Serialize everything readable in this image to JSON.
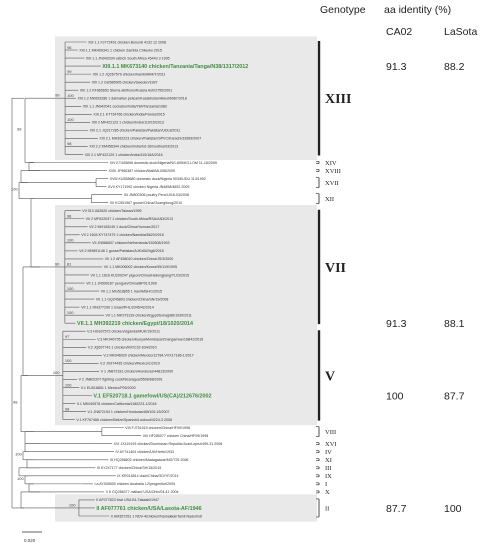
{
  "headers": {
    "genotype": "Genotype",
    "aa_identity": "aa identity (%)",
    "ref1": "CA02",
    "ref2": "LaSota"
  },
  "scale_bar": "0.020",
  "groups": [
    {
      "name": "XIII",
      "shaded": true,
      "big": true,
      "tips": [
        "XIII 1.1 FJ772491 chicken Burundi 4132 12 2008",
        "XIII 1.1 MK409341 1 chicken Zambia Chiwoko 2015",
        "XIII.1.1 JN942034 ostrich South Africa 45443 3 1995",
        "XIII.1.1 MK673140 chicken/Tanzania/Tanga/N38/1317/2012",
        "XIII 1.2 JQ267579 chicken/Iran/EMM4/T/2011",
        "XIII 1.2 GU585905 chicken/Sweden/1997",
        "XIII 1.2 KF865652 Sterna albifrons/Russia Astr/2755/2001",
        "XIII 1.2 MK693286 1 dalmatian pelican/Kazakhstan/Akkol/6987/2018",
        "XIII 1.1 JN942041 cockatoo/India/784/Tanzania/1982",
        "XIII.2.1 KT734766 chicken/India/Pandu/2015",
        "XIII 2 MF422123 1 chicken/India/110/15/2013",
        "XIII 2.1 JQ217285 chicken/Pakistan/Pakistan/UDL8/2011",
        "XIII 2.1 MH392223 chicken/Pakistan/SPVC/Karachi/33569/2007",
        "XIII 2.2 KM456344 chicken/India/hd-16/Godhra/03/2013",
        "XIII 2.1 MF422129 1 chicken/India/410/16A/2016"
      ]
    },
    {
      "name": "XIV",
      "tips": [
        "XIV KT445896 domestic duck/Nigeria/NG-695/KG.LOM 11-16/2009"
      ]
    },
    {
      "name": "XVIII",
      "tips": [
        "XVIII JF966387 chicken/Mali/ML008/2009"
      ]
    },
    {
      "name": "XVII",
      "tips": [
        "XVIII KU558680 domestic duck/Nigeria 903/KUDU 113/1992",
        "XVII KY171992 chicken Nigeria JN4858/4892 2009"
      ]
    },
    {
      "name": "XII",
      "tips": [
        "XII JN800306 poultry Peru/1918-03/2008",
        "XII KC551967 goose/China/Guangdong/2010"
      ]
    },
    {
      "name": "VII",
      "shaded": true,
      "big": true,
      "tips": [
        "VII 913 U62620 chicken/Taiwan/1995",
        "VII 2 MF622047 1 chicken/South Africa/RSA/AN3/2013",
        "VII 2 MH105249 1 duck/China/Yunnan/2017",
        "VII 2 1604 KY747479 1 chicken/Namibia/5620/2016",
        "VII JN986837 chicken/Netherlands/152608/1993",
        "VII 2 MH891146 1 goose/Pakistan/AJK/AW/4g6/2018",
        "VII 1.2 AF458010 chicken/China/JS/3/2000",
        "VII 1.1 MK006002 chicken/Korea/95/119/1995",
        "VII 1.1 1616 KU200247 pigeon/China/Heilongjiang/TL03/2015",
        "VII 1.1 JN599167 penguin/China/BP01/1999",
        "VII 1.1 MG518855 1 Iran/IMSH/1/2015",
        "VII 1.1 GQ245803 chicken/China/SN/19/2008",
        "VII 1.1 MH377290 1 Israel/PHL/2045/42/2014",
        "VII 1.1 MK973139 chicken/Egypt/Sohag/86/1030/2011",
        "VII.1.1 MH392219 chicken/Egypt/18/1020/2014"
      ]
    },
    {
      "name": "V",
      "shaded": true,
      "big": true,
      "tips": [
        "V.3 HG937572 chicken/Uganda/MUK/19/2011",
        "V.3 MK940795 chicken/Kenya/Mombasa/Changamwe/16B42/2016",
        "V.2 JQ697743 1 chicken/MX/C32-634/2010",
        "V.2 MK046920 chicken/Mexico/12784,VVX17186-1/2017",
        "V.2 JX974435 chicken/Mexico/1/2010",
        "V 1 JN872181 chicken/Honduras/44813/2000",
        "V 2 JN802207 fighting cock/Nicaragua/5506/68/2001",
        "V.1 EU518851 1 Mexico/P05/2000",
        "V.1 EF520718.1 gamefowl/US(CA)/212676/2002",
        "V.1 MK040578 chicken/California/1180223-1/2018",
        "V.1 JN872194 1 chicken/Honduras/AW109-15/2007",
        "V.1 KF767466 chicken/Belize/Spanish/Lookout/4224-3 2008"
      ]
    },
    {
      "name": "VIII",
      "tips": [
        "VIII FJ751919 chicken/China/HF09/1998",
        "VIII HF285077 chicken China/HF09/1998"
      ]
    },
    {
      "name": "XVI",
      "tips": [
        "XVI JX119193 chicken/Dominican Republic/JuanLopez/499-31 2008"
      ]
    },
    {
      "name": "IV",
      "tips": [
        "IV AY741404 chicken/UK/Herts/1933"
      ]
    },
    {
      "name": "XI",
      "tips": [
        "XI HQ266602 chicken/Madagascar/MG/725 2008"
      ]
    },
    {
      "name": "III",
      "tips": [
        "III KY247177 chicken/China/SH/15/2015"
      ]
    },
    {
      "name": "IX",
      "tips": [
        "IX KR014814 duck/China/GD/YF/2014"
      ]
    },
    {
      "name": "I",
      "tips": [
        "I.a AY935500 chicken Australia I-2/progenitor/2005"
      ]
    },
    {
      "name": "X",
      "tips": [
        "X 6 GQ288377 mallard USA/Ohio/04-41 2004"
      ]
    },
    {
      "name": "II",
      "shaded": true,
      "tips": [
        "II AF077823 fowl USA B1-Takaaki/1947",
        "II AF077761 chicken/USA/Lasota-AF/1946",
        "II HM357251 1 NDV-4/chicken/Namakkal/Tamil Nadu/IndI"
      ]
    }
  ],
  "highlighted": [
    "XIII.1.1 MK673140 chicken/Tanzania/Tanga/N38/1317/2012",
    "VII.1.1 MH392219 chicken/Egypt/18/1020/2014",
    "V.1 EF520718.1 gamefowl/US(CA)/212676/2002",
    "II AF077761 chicken/USA/Lasota-AF/1946"
  ],
  "identity_rows": [
    {
      "tip": "XIII.1.1 MK673140 chicken/Tanzania/Tanga/N38/1317/2012",
      "CA02": "91.3",
      "LaSota": "88.2"
    },
    {
      "tip": "VII.1.1 MH392219 chicken/Egypt/18/1020/2014",
      "CA02": "91.3",
      "LaSota": "88.1"
    },
    {
      "tip": "V.1 EF520718.1 gamefowl/US(CA)/212676/2002",
      "CA02": "100",
      "LaSota": "87.7"
    },
    {
      "tip": "II AF077761 chicken/USA/Lasota-AF/1946",
      "CA02": "87.7",
      "LaSota": "100"
    }
  ],
  "bootstrap_labels": [
    "99",
    "96",
    "99",
    "100",
    "100",
    "98",
    "90",
    "98",
    "100",
    "81",
    "100",
    "100",
    "100",
    "97",
    "100",
    "100",
    "98",
    "100",
    "98",
    "100",
    "98",
    "100",
    "100",
    "99",
    "100",
    "100",
    "100",
    "98",
    "100",
    "90",
    "100",
    "70",
    "100",
    "97",
    "100",
    "97",
    "90",
    "41",
    "97",
    "100",
    "100",
    "100",
    "100"
  ]
}
